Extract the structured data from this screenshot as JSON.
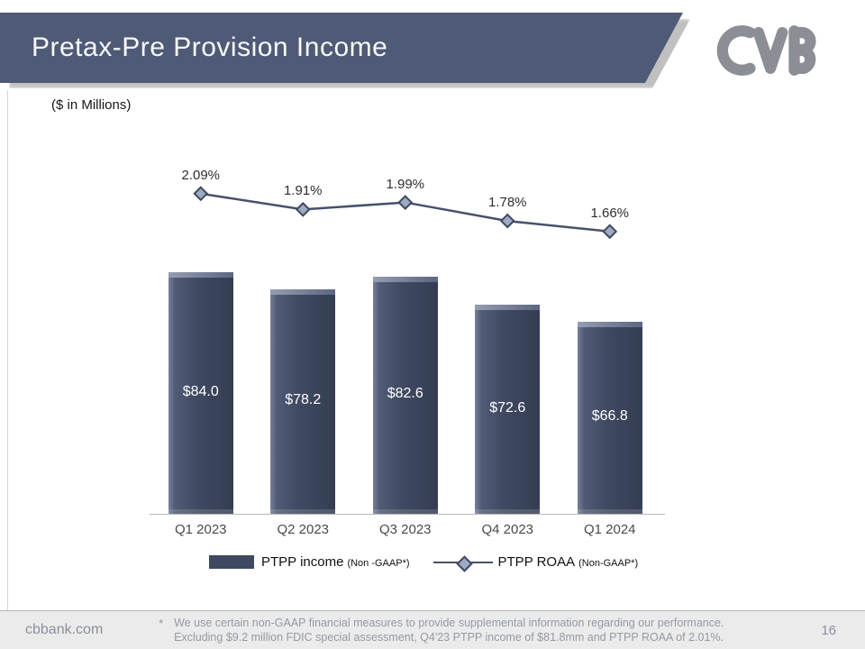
{
  "slide": {
    "title": "Pretax-Pre Provision Income",
    "units_label": "($ in Millions)",
    "website": "cbbank.com",
    "page_number": "16"
  },
  "footnote": {
    "marker": "*",
    "line1": "We use certain non-GAAP financial measures to provide supplemental information regarding our performance.",
    "line2": "Excluding $9.2 million FDIC special assessment, Q4'23 PTPP income of $81.8mm and PTPP ROAA of 2.01%."
  },
  "legend": {
    "bar_label": "PTPP income",
    "bar_sublabel": "(Non -GAAP*)",
    "line_label": "PTPP ROAA",
    "line_sublabel": "(Non-GAAP*)"
  },
  "icons": {
    "logo": "cvb-logo"
  },
  "colors": {
    "banner": "#4f5a76",
    "bar": "#3f4961",
    "line": "#47516b",
    "marker_fill": "#9fa9c2",
    "footer_bg": "#ebebeb",
    "footer_text": "#949aa3"
  },
  "chart_data": {
    "type": "bar",
    "categories": [
      "Q1 2023",
      "Q2 2023",
      "Q3 2023",
      "Q4 2023",
      "Q1 2024"
    ],
    "series": [
      {
        "name": "PTPP income (Non -GAAP*)",
        "type": "bar",
        "values": [
          84.0,
          78.2,
          82.6,
          72.6,
          66.8
        ],
        "data_labels": [
          "$84.0",
          "$78.2",
          "$82.6",
          "$72.6",
          "$66.8"
        ]
      },
      {
        "name": "PTPP ROAA (Non-GAAP*)",
        "type": "line",
        "values": [
          2.09,
          1.91,
          1.99,
          1.78,
          1.66
        ],
        "data_labels": [
          "2.09%",
          "1.91%",
          "1.99%",
          "1.78%",
          "1.66%"
        ]
      }
    ],
    "title": "Pretax-Pre Provision Income",
    "xlabel": "",
    "ylabel": "($ in Millions)",
    "grid": false,
    "legend_position": "bottom"
  }
}
